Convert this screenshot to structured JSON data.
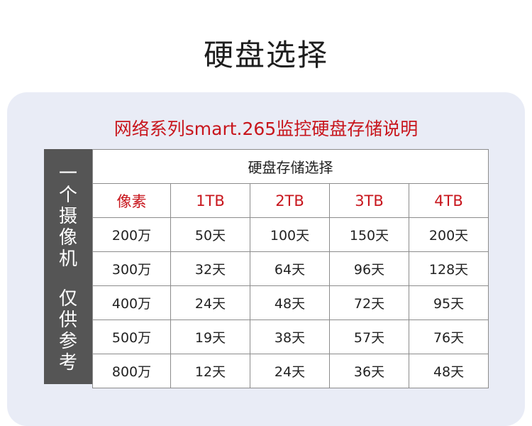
{
  "page": {
    "title": "硬盘选择",
    "subtitle": "网络系列smart.265监控硬盘存储说明"
  },
  "side_label": {
    "top_chars": [
      "一",
      "个",
      "摄",
      "像",
      "机"
    ],
    "bottom_chars": [
      "仅",
      "供",
      "参",
      "考"
    ]
  },
  "table": {
    "header": "硬盘存储选择",
    "columns": [
      "像素",
      "1TB",
      "2TB",
      "3TB",
      "4TB"
    ],
    "rows": [
      [
        "200万",
        "50天",
        "100天",
        "150天",
        "200天"
      ],
      [
        "300万",
        "32天",
        "64天",
        "96天",
        "128天"
      ],
      [
        "400万",
        "24天",
        "48天",
        "72天",
        "95天"
      ],
      [
        "500万",
        "19天",
        "38天",
        "57天",
        "76天"
      ],
      [
        "800万",
        "12天",
        "24天",
        "36天",
        "48天"
      ]
    ]
  },
  "colors": {
    "accent_red": "#c8161d",
    "side_panel": "#555555",
    "card_bg": "#e9ecf6"
  }
}
